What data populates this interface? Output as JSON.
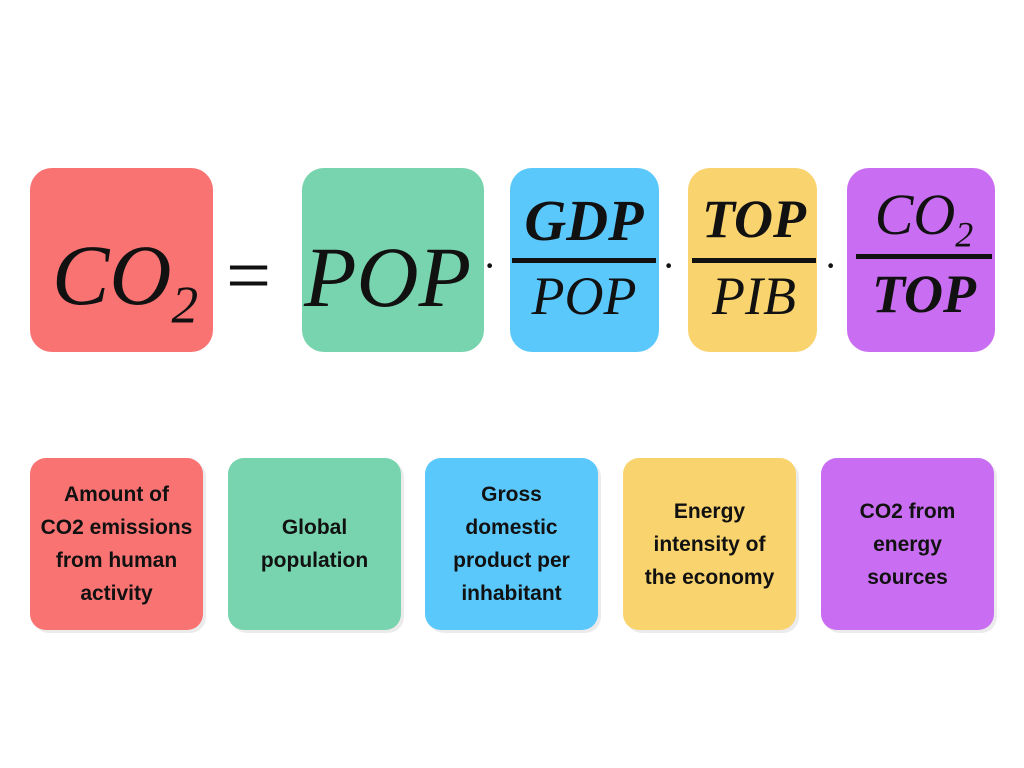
{
  "formula": {
    "lhs": {
      "base": "CO",
      "sub": "2"
    },
    "equals": "=",
    "operator": "·",
    "terms": [
      {
        "text": "POP"
      },
      {
        "numerator": "GDP",
        "denominator": "POP"
      },
      {
        "numerator": "TOP",
        "denominator": "PIB"
      },
      {
        "numerator": {
          "base": "CO",
          "sub": "2"
        },
        "denominator": "TOP"
      }
    ]
  },
  "cards": [
    {
      "lines": [
        "Amount of",
        "CO2 emissions",
        "from human",
        "activity"
      ],
      "color": "#fa7373"
    },
    {
      "lines": [
        "Global",
        "population"
      ],
      "color": "#77d4ae"
    },
    {
      "lines": [
        "Gross",
        "domestic",
        "product per",
        "inhabitant"
      ],
      "color": "#5bc8fc"
    },
    {
      "lines": [
        "Energy",
        "intensity of",
        "the economy"
      ],
      "color": "#f9d46e"
    },
    {
      "lines": [
        "CO2 from",
        "energy",
        "sources"
      ],
      "color": "#c96ef2"
    }
  ]
}
